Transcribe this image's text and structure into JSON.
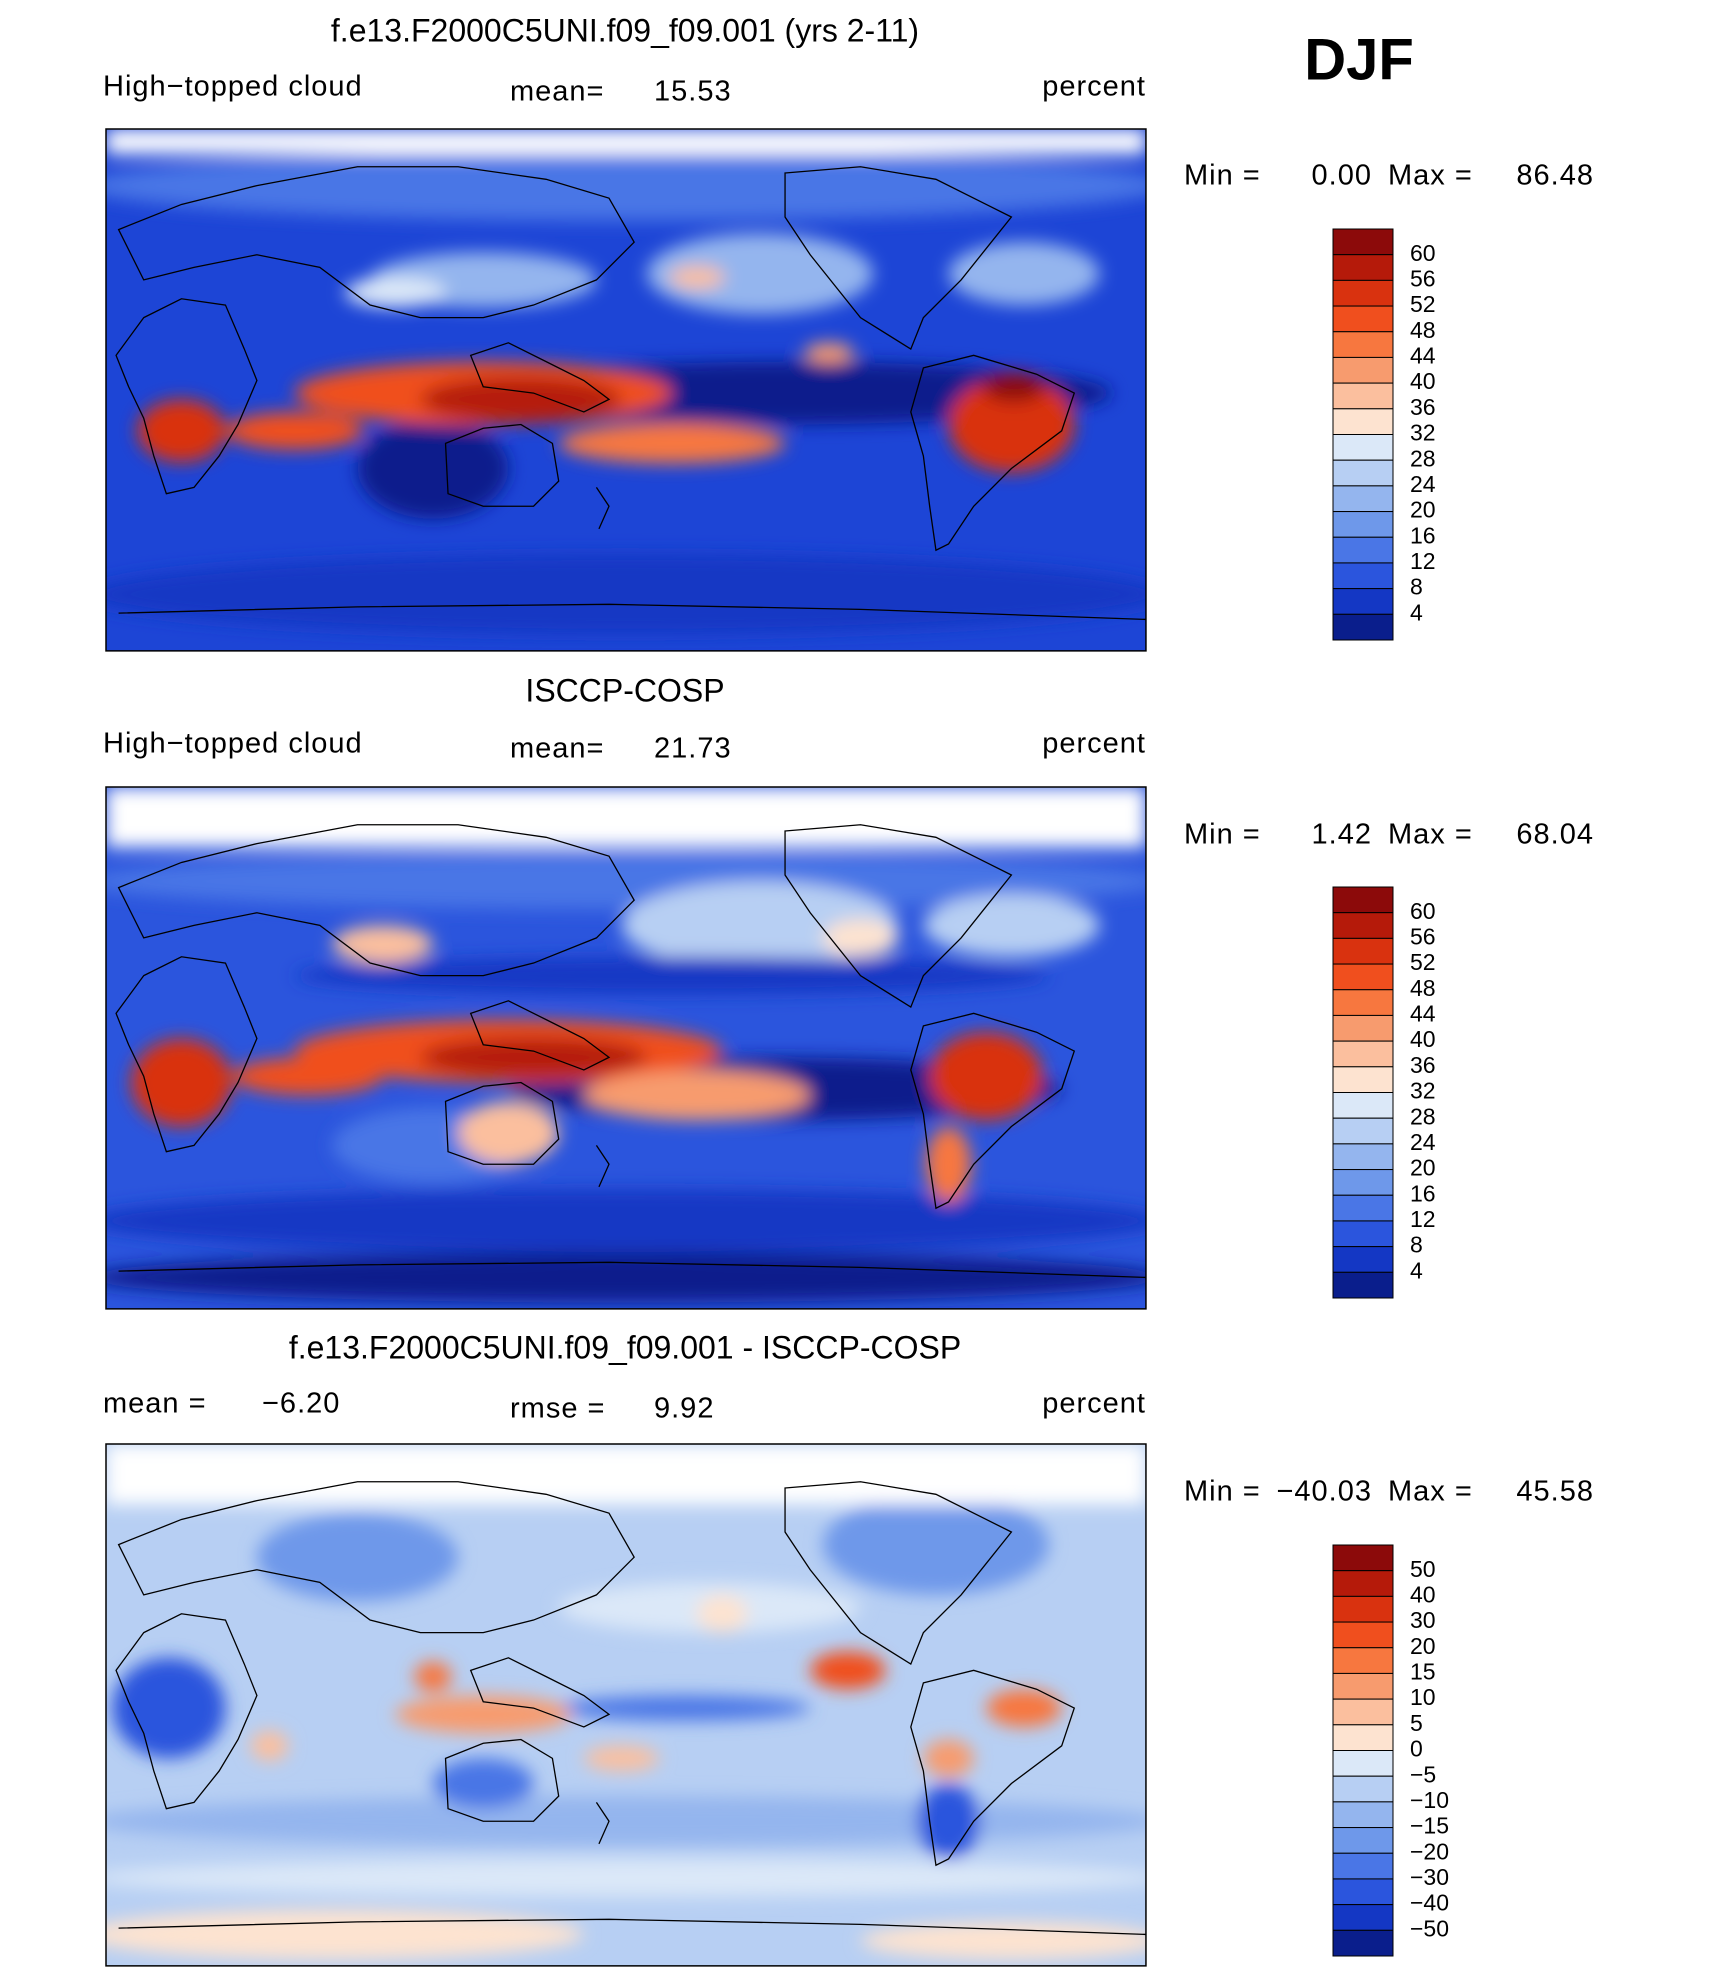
{
  "header": {
    "season": "DJF"
  },
  "panels": [
    {
      "title": "f.e13.F2000C5UNI.f09_f09.001 (yrs 2-11)",
      "left": [
        "High−topped cloud"
      ],
      "center": [
        "mean=",
        "15.53"
      ],
      "right": "percent",
      "min_label": "Min =",
      "min": "0.00",
      "max_label": "Max =",
      "max": "86.48",
      "colorbar": {
        "labels": [
          "60",
          "56",
          "52",
          "48",
          "44",
          "40",
          "36",
          "32",
          "28",
          "24",
          "20",
          "16",
          "12",
          "8",
          "4"
        ],
        "colors": [
          "#8c0a0a",
          "#b51a0a",
          "#d9320f",
          "#f04f1e",
          "#f7773f",
          "#f79b6e",
          "#fbbf9e",
          "#fde3d0",
          "#dbe8f8",
          "#b7cff3",
          "#94b5ee",
          "#6e98ea",
          "#4a76e6",
          "#2b55dd",
          "#1437c4",
          "#0a1e8c"
        ]
      }
    },
    {
      "title": "ISCCP-COSP",
      "left": [
        "High−topped cloud"
      ],
      "center": [
        "mean=",
        "21.73"
      ],
      "right": "percent",
      "min_label": "Min =",
      "min": "1.42",
      "max_label": "Max =",
      "max": "68.04",
      "colorbar": {
        "labels": [
          "60",
          "56",
          "52",
          "48",
          "44",
          "40",
          "36",
          "32",
          "28",
          "24",
          "20",
          "16",
          "12",
          "8",
          "4"
        ],
        "colors": [
          "#8c0a0a",
          "#b51a0a",
          "#d9320f",
          "#f04f1e",
          "#f7773f",
          "#f79b6e",
          "#fbbf9e",
          "#fde3d0",
          "#dbe8f8",
          "#b7cff3",
          "#94b5ee",
          "#6e98ea",
          "#4a76e6",
          "#2b55dd",
          "#1437c4",
          "#0a1e8c"
        ]
      }
    },
    {
      "title": "f.e13.F2000C5UNI.f09_f09.001 - ISCCP-COSP",
      "left": [
        "mean =",
        "−6.20"
      ],
      "center": [
        "rmse =",
        "9.92"
      ],
      "right": "percent",
      "min_label": "Min =",
      "min": "−40.03",
      "max_label": "Max =",
      "max": "45.58",
      "colorbar": {
        "labels": [
          "50",
          "40",
          "30",
          "20",
          "15",
          "10",
          "5",
          "0",
          "−5",
          "−10",
          "−15",
          "−20",
          "−30",
          "−40",
          "−50"
        ],
        "colors": [
          "#8c0a0a",
          "#b51a0a",
          "#d9320f",
          "#f04f1e",
          "#f7773f",
          "#f79b6e",
          "#fbbf9e",
          "#fde3d0",
          "#dbe8f8",
          "#b7cff3",
          "#94b5ee",
          "#6e98ea",
          "#4a76e6",
          "#2b55dd",
          "#1437c4",
          "#0a1e8c"
        ]
      }
    }
  ]
}
